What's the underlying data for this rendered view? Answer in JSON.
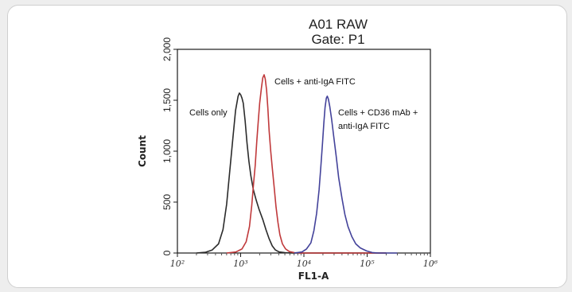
{
  "chart_data": {
    "type": "line",
    "title": "A01 RAW",
    "subtitle": "Gate: P1",
    "xlabel": "FL1-A",
    "ylabel": "Count",
    "x_scale": "log",
    "xlim": [
      100,
      1000000
    ],
    "ylim": [
      0,
      2000
    ],
    "y_ticks": [
      "0",
      "500",
      "1,000",
      "1,500",
      "2,000"
    ],
    "x_ticks": [
      "10²",
      "10³",
      "10⁴",
      "10⁵",
      "10⁶"
    ],
    "x_tick_values": [
      100,
      1000,
      10000,
      100000,
      1000000
    ],
    "series": [
      {
        "name": "Cells only",
        "color": "#2b2b2b",
        "points": [
          [
            200,
            0
          ],
          [
            280,
            8
          ],
          [
            355,
            30
          ],
          [
            447,
            90
          ],
          [
            525,
            230
          ],
          [
            600,
            480
          ],
          [
            676,
            820
          ],
          [
            760,
            1150
          ],
          [
            832,
            1400
          ],
          [
            912,
            1540
          ],
          [
            955,
            1570
          ],
          [
            1000,
            1555
          ],
          [
            1050,
            1520
          ],
          [
            1100,
            1470
          ],
          [
            1175,
            1300
          ],
          [
            1260,
            1080
          ],
          [
            1350,
            900
          ],
          [
            1450,
            760
          ],
          [
            1590,
            620
          ],
          [
            1760,
            520
          ],
          [
            1950,
            430
          ],
          [
            2240,
            330
          ],
          [
            2510,
            230
          ],
          [
            2820,
            140
          ],
          [
            3160,
            70
          ],
          [
            3550,
            30
          ],
          [
            4070,
            10
          ],
          [
            5010,
            3
          ],
          [
            6500,
            0
          ],
          [
            200000,
            0
          ]
        ]
      },
      {
        "name": "Cells + anti-IgA FITC",
        "color": "#c0393b",
        "points": [
          [
            600,
            0
          ],
          [
            840,
            10
          ],
          [
            1050,
            40
          ],
          [
            1220,
            110
          ],
          [
            1380,
            260
          ],
          [
            1500,
            470
          ],
          [
            1600,
            680
          ],
          [
            1700,
            860
          ],
          [
            1800,
            1100
          ],
          [
            1900,
            1300
          ],
          [
            2000,
            1470
          ],
          [
            2130,
            1620
          ],
          [
            2240,
            1720
          ],
          [
            2350,
            1750
          ],
          [
            2450,
            1710
          ],
          [
            2570,
            1600
          ],
          [
            2690,
            1420
          ],
          [
            2820,
            1200
          ],
          [
            2990,
            1000
          ],
          [
            3160,
            840
          ],
          [
            3390,
            640
          ],
          [
            3630,
            450
          ],
          [
            3890,
            300
          ],
          [
            4170,
            180
          ],
          [
            4570,
            90
          ],
          [
            5130,
            40
          ],
          [
            5890,
            14
          ],
          [
            7080,
            4
          ],
          [
            9000,
            0
          ],
          [
            200000,
            0
          ]
        ]
      },
      {
        "name": "Cells + CD36 mAb + anti-IgA FITC",
        "color": "#43429a",
        "points": [
          [
            7000,
            0
          ],
          [
            9330,
            10
          ],
          [
            11000,
            40
          ],
          [
            12900,
            100
          ],
          [
            14400,
            220
          ],
          [
            15900,
            390
          ],
          [
            17400,
            620
          ],
          [
            18600,
            860
          ],
          [
            19700,
            1080
          ],
          [
            20700,
            1280
          ],
          [
            21600,
            1430
          ],
          [
            22600,
            1520
          ],
          [
            23400,
            1540
          ],
          [
            24400,
            1510
          ],
          [
            25600,
            1440
          ],
          [
            27500,
            1310
          ],
          [
            29500,
            1150
          ],
          [
            32400,
            950
          ],
          [
            35500,
            740
          ],
          [
            39900,
            540
          ],
          [
            44500,
            380
          ],
          [
            49800,
            260
          ],
          [
            57400,
            160
          ],
          [
            66100,
            90
          ],
          [
            78000,
            50
          ],
          [
            98000,
            20
          ],
          [
            120000,
            5
          ],
          [
            150000,
            0
          ],
          [
            300000,
            0
          ]
        ]
      }
    ],
    "annotations": [
      {
        "text": "Cells only"
      },
      {
        "text": "Cells + anti-IgA FITC"
      },
      {
        "text": "Cells + CD36 mAb +"
      },
      {
        "text": "anti-IgA FITC"
      }
    ]
  }
}
